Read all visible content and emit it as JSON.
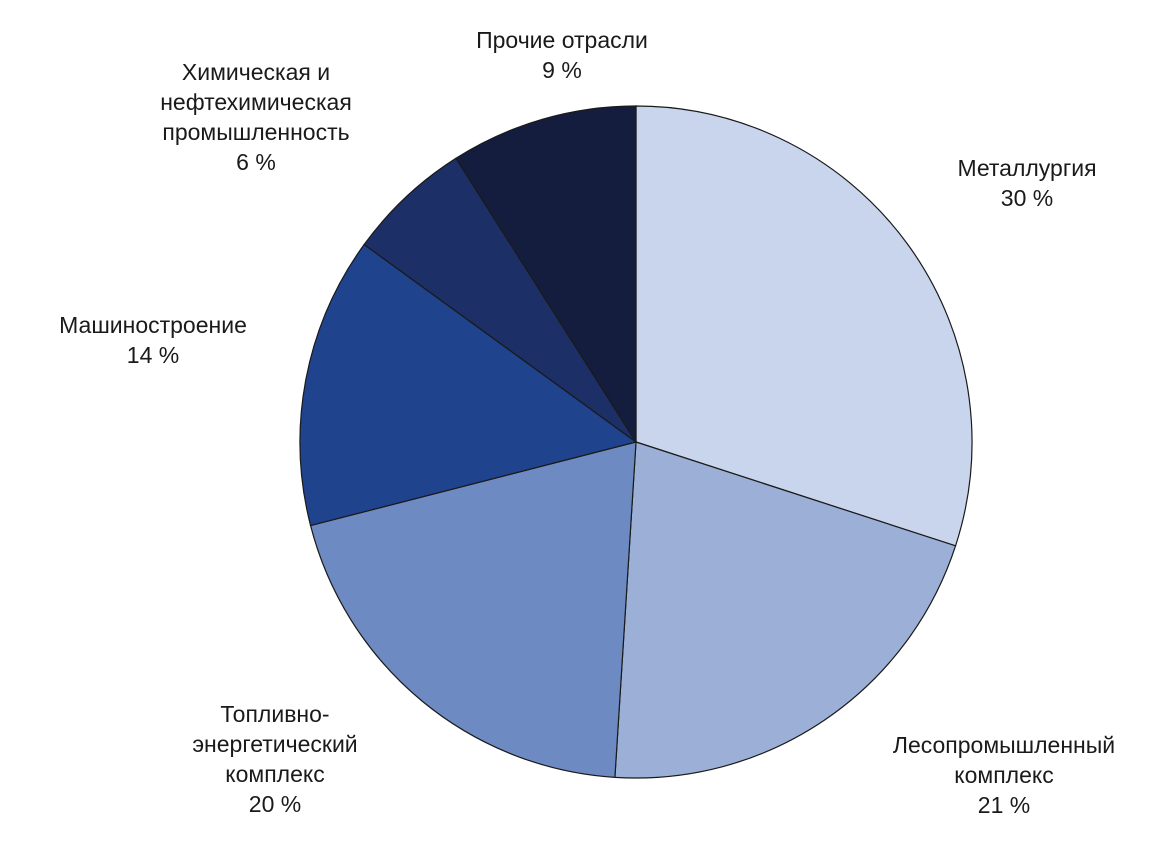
{
  "chart_data": {
    "type": "pie",
    "start": "12 o'clock",
    "direction": "clockwise",
    "slices": [
      {
        "label": [
          "Металлургия"
        ],
        "value": 30,
        "value_label": "30 %",
        "color": "#c9d5ec"
      },
      {
        "label": [
          "Лесопромышленный",
          "комплекс"
        ],
        "value": 21,
        "value_label": "21 %",
        "color": "#9cb0d7"
      },
      {
        "label": [
          "Топливно-",
          "энергетический",
          "комплекс"
        ],
        "value": 20,
        "value_label": "20 %",
        "color": "#6d8bc2"
      },
      {
        "label": [
          "Машиностроение"
        ],
        "value": 14,
        "value_label": "14 %",
        "color": "#1f438d"
      },
      {
        "label": [
          "Химическая и",
          "нефтехимическая",
          "промышленность"
        ],
        "value": 6,
        "value_label": "6 %",
        "color": "#1c2f66"
      },
      {
        "label": [
          "Прочие отрасли"
        ],
        "value": 9,
        "value_label": "9 %",
        "color": "#141d3d"
      }
    ]
  }
}
